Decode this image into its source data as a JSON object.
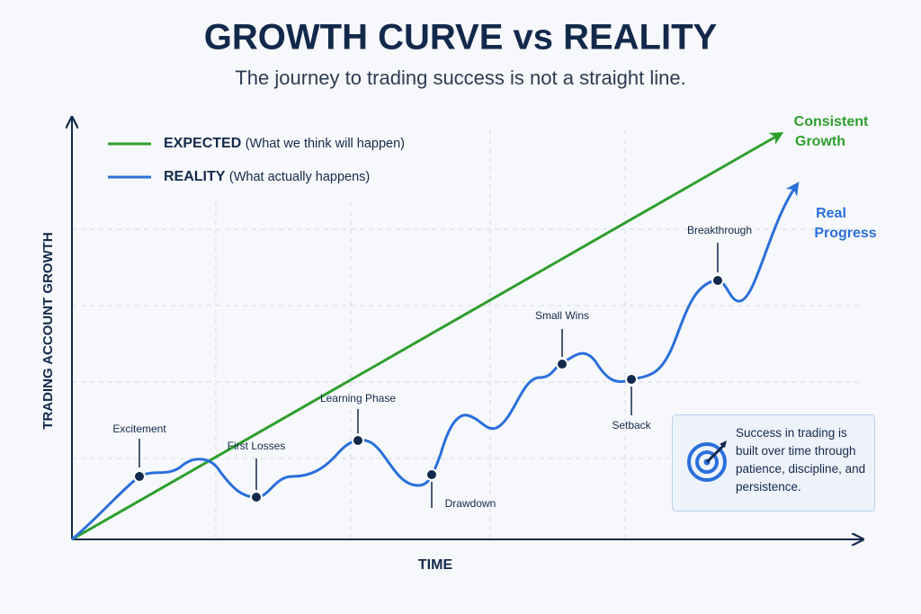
{
  "title": "GROWTH CURVE vs REALITY",
  "subtitle": "The journey to trading success is not a straight line.",
  "legend": [
    {
      "label": "EXPECTED",
      "note": "(What we think will happen)"
    },
    {
      "label": "REALITY",
      "note": "(What actually happens)"
    }
  ],
  "axes": {
    "y": "TRADING ACCOUNT GROWTH",
    "x": "TIME"
  },
  "end_labels": {
    "expected": [
      "Consistent",
      "Growth"
    ],
    "reality": [
      "Real",
      "Progress"
    ]
  },
  "milestones": [
    "Excitement",
    "First Losses",
    "Learning Phase",
    "Drawdown",
    "Small Wins",
    "Setback",
    "Breakthrough"
  ],
  "callout": "Success in trading is built over time through patience, discipline, and persistence."
}
